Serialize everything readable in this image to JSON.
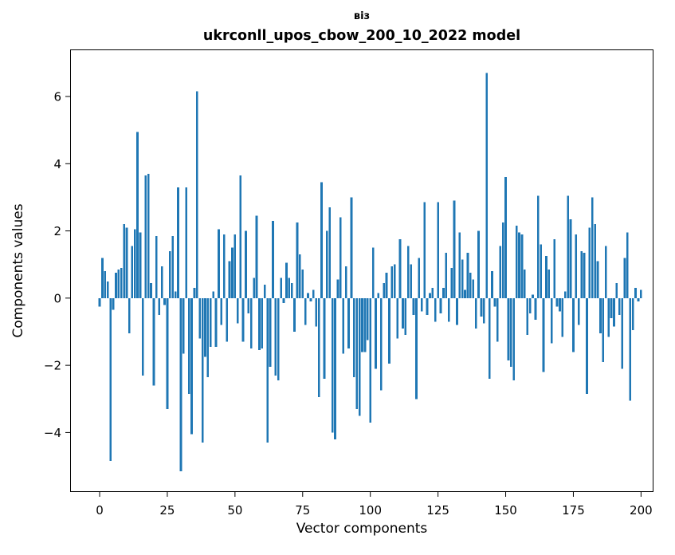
{
  "chart_data": {
    "type": "bar",
    "title_line1": "віз",
    "title_line2": "ukrconll_upos_cbow_200_10_2022 model",
    "xlabel": "Vector components",
    "ylabel": "Components values",
    "x_ticks": [
      0,
      25,
      50,
      75,
      100,
      125,
      150,
      175,
      200
    ],
    "y_ticks": [
      -4,
      -2,
      0,
      2,
      4,
      6
    ],
    "xlim": [
      -10.9,
      204.6
    ],
    "ylim": [
      -5.77,
      7.4
    ],
    "grid": false,
    "legend": "none",
    "bar_color": "#1f77b4",
    "spine_color": "#000000",
    "x": [
      0,
      1,
      2,
      3,
      4,
      5,
      6,
      7,
      8,
      9,
      10,
      11,
      12,
      13,
      14,
      15,
      16,
      17,
      18,
      19,
      20,
      21,
      22,
      23,
      24,
      25,
      26,
      27,
      28,
      29,
      30,
      31,
      32,
      33,
      34,
      35,
      36,
      37,
      38,
      39,
      40,
      41,
      42,
      43,
      44,
      45,
      46,
      47,
      48,
      49,
      50,
      51,
      52,
      53,
      54,
      55,
      56,
      57,
      58,
      59,
      60,
      61,
      62,
      63,
      64,
      65,
      66,
      67,
      68,
      69,
      70,
      71,
      72,
      73,
      74,
      75,
      76,
      77,
      78,
      79,
      80,
      81,
      82,
      83,
      84,
      85,
      86,
      87,
      88,
      89,
      90,
      91,
      92,
      93,
      94,
      95,
      96,
      97,
      98,
      99,
      100,
      101,
      102,
      103,
      104,
      105,
      106,
      107,
      108,
      109,
      110,
      111,
      112,
      113,
      114,
      115,
      116,
      117,
      118,
      119,
      120,
      121,
      122,
      123,
      124,
      125,
      126,
      127,
      128,
      129,
      130,
      131,
      132,
      133,
      134,
      135,
      136,
      137,
      138,
      139,
      140,
      141,
      142,
      143,
      144,
      145,
      146,
      147,
      148,
      149,
      150,
      151,
      152,
      153,
      154,
      155,
      156,
      157,
      158,
      159,
      160,
      161,
      162,
      163,
      164,
      165,
      166,
      167,
      168,
      169,
      170,
      171,
      172,
      173,
      174,
      175,
      176,
      177,
      178,
      179,
      180,
      181,
      182,
      183,
      184,
      185,
      186,
      187,
      188,
      189,
      190,
      191,
      192,
      193,
      194,
      195,
      196,
      197,
      198,
      199,
      200
    ],
    "values": [
      -0.25,
      1.2,
      0.8,
      0.5,
      -4.85,
      -0.35,
      0.75,
      0.85,
      0.9,
      2.2,
      2.1,
      -1.05,
      1.55,
      2.05,
      4.95,
      1.95,
      -2.3,
      3.65,
      3.7,
      0.45,
      -2.6,
      1.85,
      -0.5,
      0.95,
      -0.2,
      -3.3,
      1.4,
      1.85,
      0.2,
      3.3,
      -5.15,
      -1.65,
      3.3,
      -2.85,
      -4.05,
      0.3,
      6.15,
      -1.2,
      -4.3,
      -1.75,
      -2.35,
      -1.45,
      0.2,
      -1.45,
      2.05,
      -0.8,
      1.9,
      -1.3,
      1.1,
      1.5,
      1.9,
      -0.75,
      3.65,
      -1.3,
      2.0,
      -0.45,
      -1.5,
      0.6,
      2.45,
      -1.55,
      -1.5,
      0.4,
      -4.3,
      -2.05,
      2.3,
      -2.3,
      -2.45,
      0.6,
      -0.15,
      1.05,
      0.6,
      0.45,
      -1.0,
      2.25,
      1.3,
      0.85,
      -0.8,
      0.15,
      -0.1,
      0.25,
      -0.85,
      -2.95,
      3.45,
      -2.4,
      2.0,
      2.7,
      -4.0,
      -4.2,
      0.55,
      2.4,
      -1.65,
      0.95,
      -1.5,
      3.0,
      -2.35,
      -3.3,
      -3.5,
      -1.6,
      -1.6,
      -1.25,
      -3.7,
      1.5,
      -2.1,
      0.15,
      -2.75,
      0.45,
      0.75,
      -1.95,
      0.95,
      1.0,
      -1.2,
      1.75,
      -0.9,
      -1.1,
      1.55,
      1.0,
      -0.5,
      -3.0,
      1.2,
      -0.4,
      2.85,
      -0.5,
      0.15,
      0.3,
      -0.7,
      2.85,
      -0.45,
      0.3,
      1.35,
      -0.7,
      0.9,
      2.9,
      -0.8,
      1.95,
      1.15,
      0.25,
      1.35,
      0.75,
      0.55,
      -0.9,
      2.0,
      -0.55,
      -0.75,
      6.7,
      -2.4,
      0.8,
      -0.25,
      -1.3,
      1.55,
      2.25,
      3.6,
      -1.85,
      -2.05,
      -2.45,
      2.15,
      1.95,
      1.9,
      0.85,
      -1.1,
      -0.45,
      0.1,
      -0.65,
      3.05,
      1.6,
      -2.2,
      1.25,
      0.85,
      -1.35,
      1.75,
      -0.25,
      -0.4,
      -1.15,
      0.2,
      3.05,
      2.35,
      -1.6,
      1.9,
      -0.8,
      1.4,
      1.35,
      -2.85,
      2.1,
      3.0,
      2.2,
      1.1,
      -1.05,
      -1.9,
      1.55,
      -1.15,
      -0.6,
      -0.85,
      0.45,
      -0.5,
      -2.1,
      1.2,
      1.95,
      -3.05,
      -0.95,
      0.3,
      -0.1,
      0.25
    ]
  }
}
